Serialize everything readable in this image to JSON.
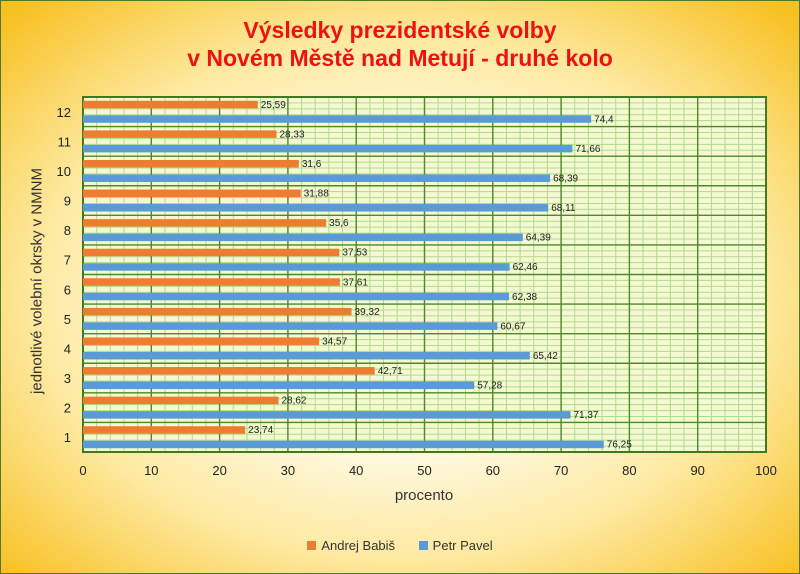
{
  "chart_data": {
    "type": "bar",
    "orientation": "horizontal",
    "title": "Výsledky prezidentské volby",
    "subtitle": "v Novém Městě nad Metují - druhé kolo",
    "xlabel": "procento",
    "ylabel": "jednotlivé volební okrsky v NMNM",
    "categories": [
      "1",
      "2",
      "3",
      "4",
      "5",
      "6",
      "7",
      "8",
      "9",
      "10",
      "11",
      "12"
    ],
    "series": [
      {
        "name": "Andrej Babiš",
        "color": "#ed7d31",
        "values": [
          23.74,
          28.62,
          42.71,
          34.57,
          39.32,
          37.61,
          37.53,
          35.6,
          31.88,
          31.6,
          28.33,
          25.59
        ],
        "labels": [
          "23,74",
          "28,62",
          "42,71",
          "34,57",
          "39,32",
          "37,61",
          "37,53",
          "35,6",
          "31,88",
          "31,6",
          "28,33",
          "25,59"
        ]
      },
      {
        "name": "Petr Pavel",
        "color": "#5b9bd5",
        "values": [
          76.25,
          71.37,
          57.28,
          65.42,
          60.67,
          62.38,
          62.46,
          64.39,
          68.11,
          68.39,
          71.66,
          74.4
        ],
        "labels": [
          "76,25",
          "71,37",
          "57,28",
          "65,42",
          "60,67",
          "62,38",
          "62,46",
          "64,39",
          "68,11",
          "68,39",
          "71,66",
          "74,4"
        ]
      }
    ],
    "xlim": [
      0,
      100
    ],
    "xticks": [
      "0",
      "10",
      "20",
      "30",
      "40",
      "50",
      "60",
      "70",
      "80",
      "90",
      "100"
    ],
    "grid": true,
    "legend_position": "bottom"
  }
}
